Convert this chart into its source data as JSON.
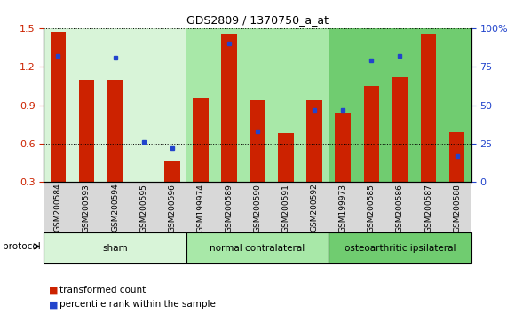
{
  "title": "GDS2809 / 1370750_a_at",
  "samples": [
    "GSM200584",
    "GSM200593",
    "GSM200594",
    "GSM200595",
    "GSM200596",
    "GSM199974",
    "GSM200589",
    "GSM200590",
    "GSM200591",
    "GSM200592",
    "GSM199973",
    "GSM200585",
    "GSM200586",
    "GSM200587",
    "GSM200588"
  ],
  "red_values": [
    1.47,
    1.1,
    1.1,
    0.3,
    0.47,
    0.96,
    1.46,
    0.94,
    0.68,
    0.94,
    0.84,
    1.05,
    1.12,
    1.46,
    0.69
  ],
  "blue_pct": [
    82,
    null,
    81,
    26,
    22,
    null,
    90,
    33,
    null,
    47,
    47,
    79,
    82,
    null,
    17
  ],
  "groups": [
    {
      "label": "sham",
      "start": 0,
      "end": 5
    },
    {
      "label": "normal contralateral",
      "start": 5,
      "end": 10
    },
    {
      "label": "osteoarthritic ipsilateral",
      "start": 10,
      "end": 15
    }
  ],
  "group_colors": [
    "#d8f4d8",
    "#a8e8a8",
    "#70cc70"
  ],
  "ylim_left": [
    0.3,
    1.5
  ],
  "ylim_right": [
    0,
    100
  ],
  "yticks_left": [
    0.3,
    0.6,
    0.9,
    1.2,
    1.5
  ],
  "yticks_right": [
    0,
    25,
    50,
    75,
    100
  ],
  "bar_color": "#cc2200",
  "dot_color": "#2244cc",
  "bar_width": 0.55,
  "legend_items": [
    {
      "label": "transformed count",
      "color": "#cc2200"
    },
    {
      "label": "percentile rank within the sample",
      "color": "#2244cc"
    }
  ],
  "protocol_label": "protocol"
}
